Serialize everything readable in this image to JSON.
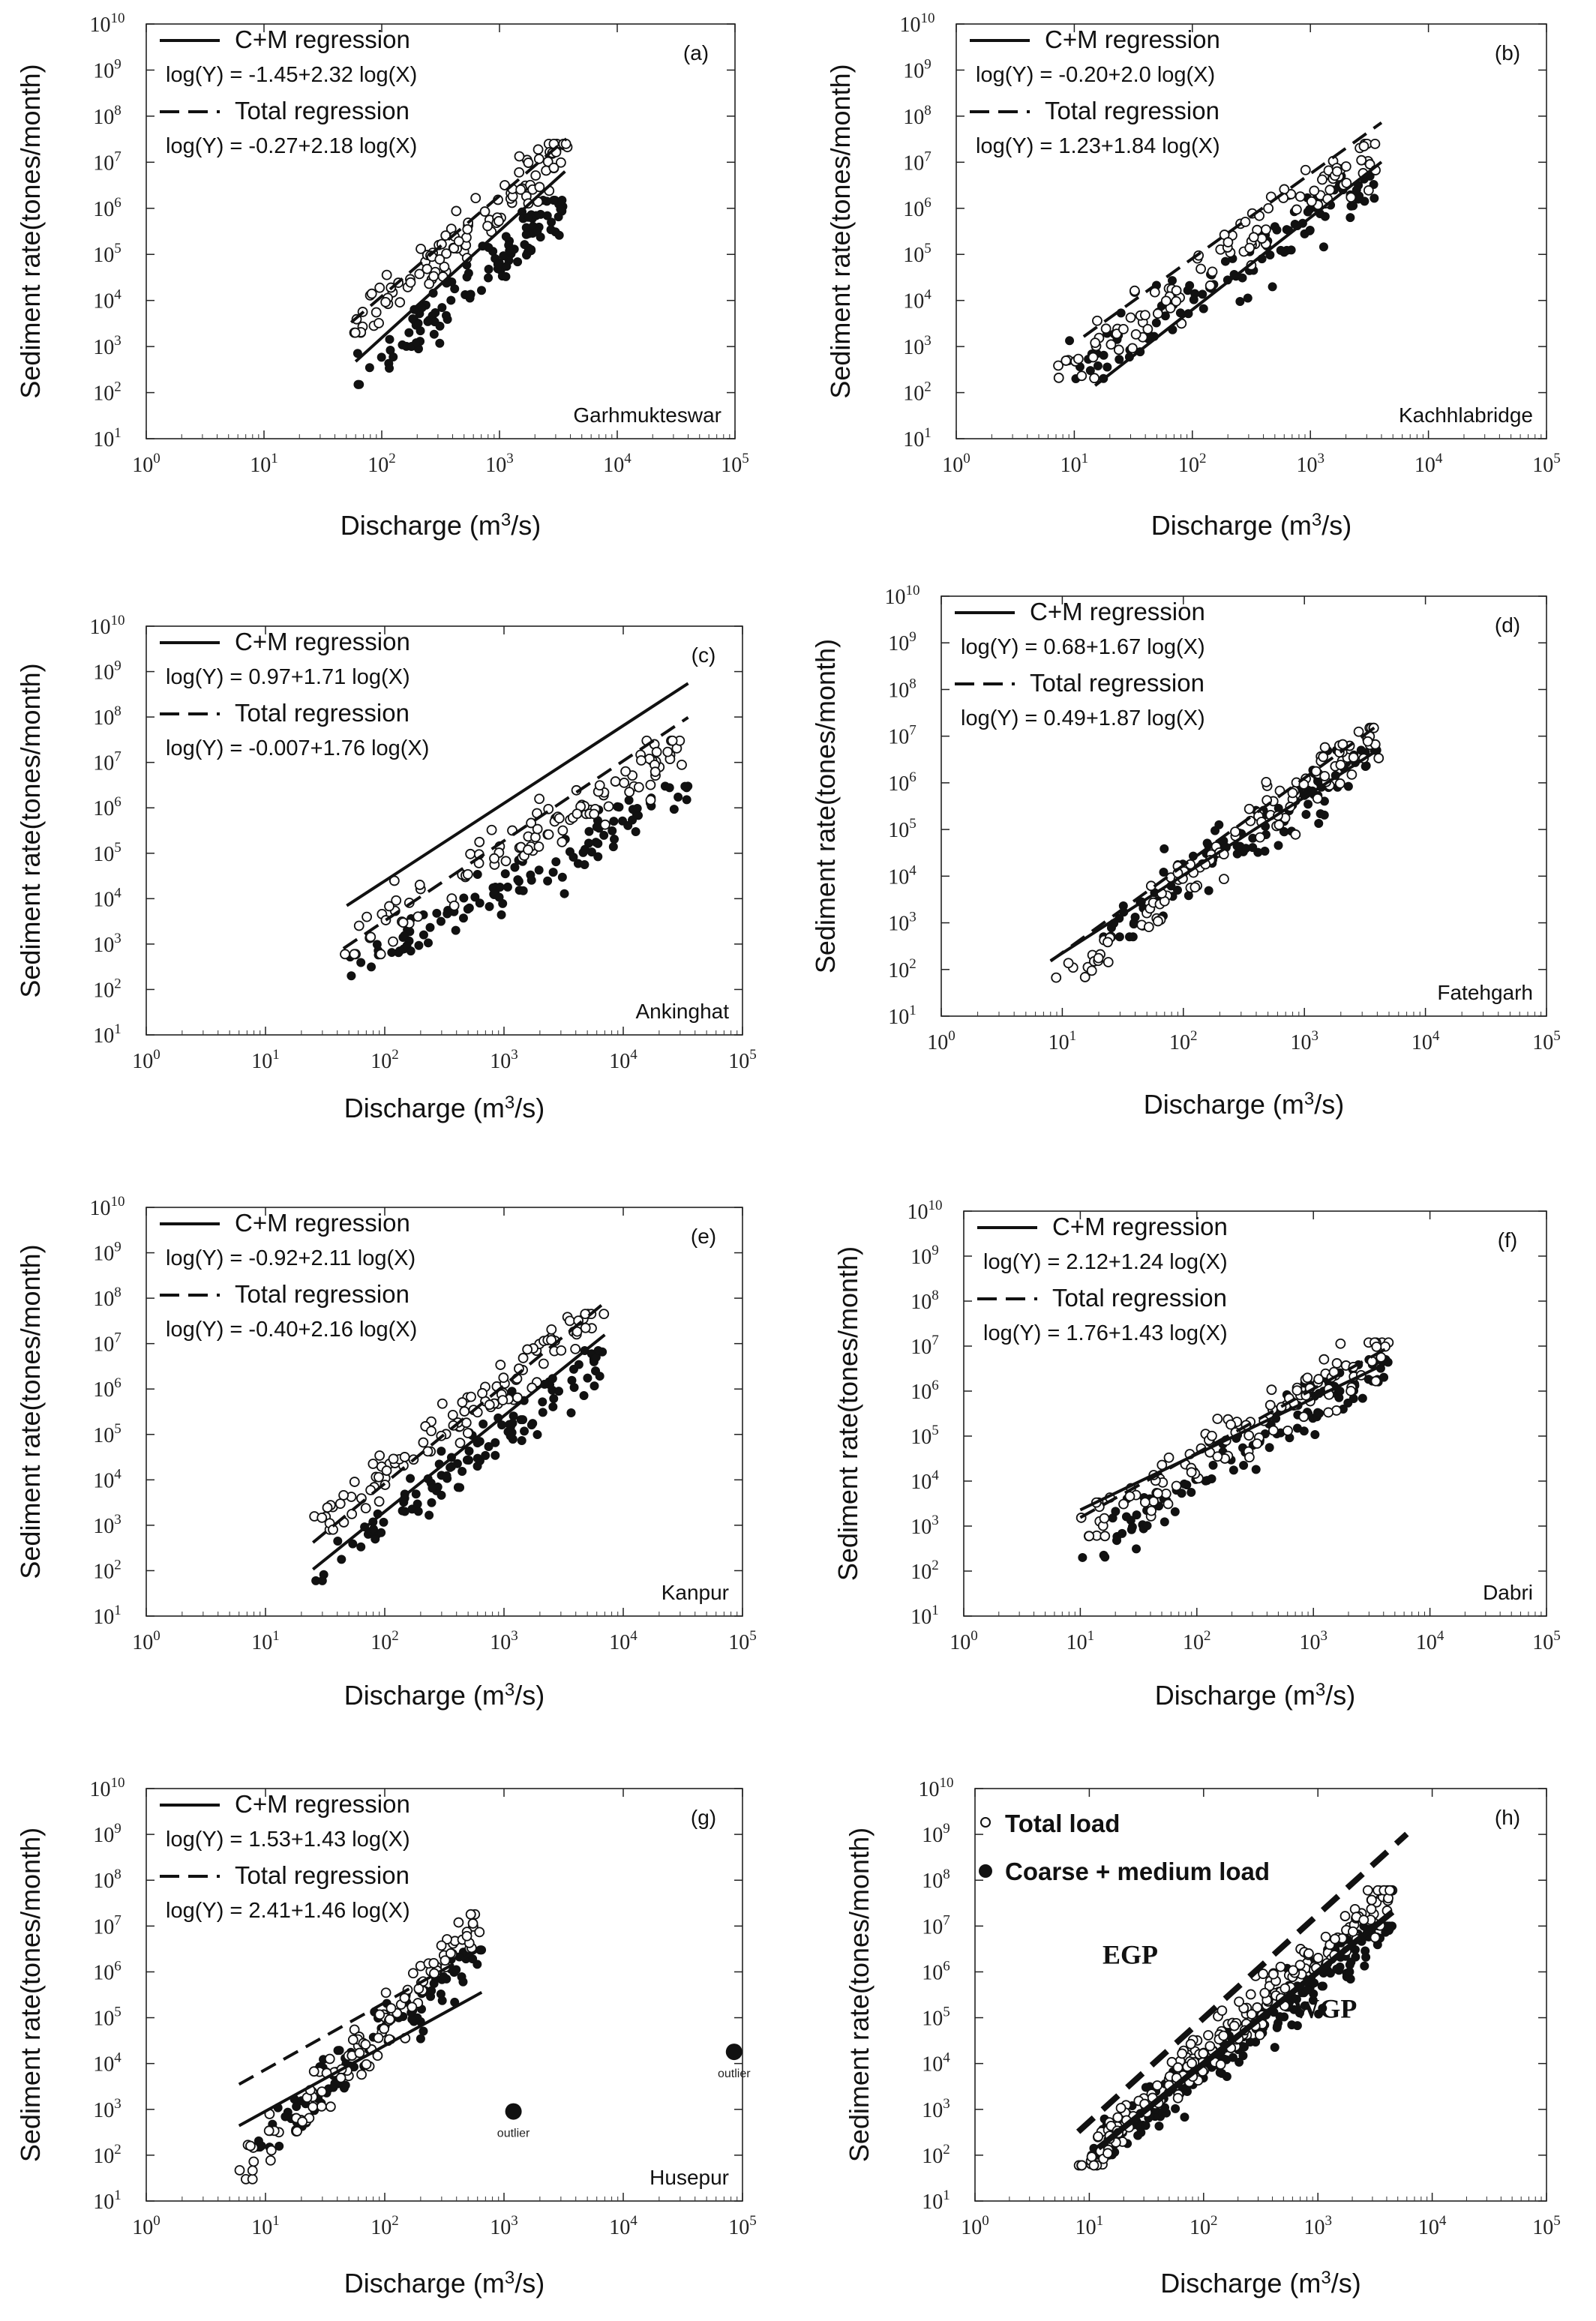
{
  "figure": {
    "xlabel_prefix": "Discharge (m",
    "xlabel_sup": "3",
    "xlabel_suffix": "/s)",
    "ylabel": "Sediment  rate(tones/month)",
    "legend_cm_label": "C+M regression",
    "legend_total_label": "Total regression",
    "outlier_label": "outlier"
  },
  "chart_data": [
    {
      "type": "scatter",
      "panel": "(a)",
      "station": "Garhmukteswar",
      "x_scale": "log",
      "y_scale": "log",
      "xlim": [
        1,
        100000
      ],
      "ylim": [
        10,
        10000000000
      ],
      "series": [
        {
          "name": "Total load",
          "marker": "open-circle",
          "x_range": [
            55,
            3800
          ],
          "y_range": [
            2000,
            25000000
          ]
        },
        {
          "name": "Coarse + medium load",
          "marker": "filled-circle",
          "x_range": [
            60,
            3500
          ],
          "y_range": [
            150,
            1500000
          ]
        }
      ],
      "regressions": [
        {
          "name": "C+M regression",
          "equation": "log(Y) = -1.45+2.32 log(X)",
          "intercept": -1.45,
          "slope": 2.32,
          "x_range": [
            60,
            3600
          ],
          "style": "solid"
        },
        {
          "name": "Total regression",
          "equation": "log(Y) = -0.27+2.18 log(X)",
          "intercept": -0.27,
          "slope": 2.18,
          "x_range": [
            55,
            3700
          ],
          "style": "dashed"
        }
      ]
    },
    {
      "type": "scatter",
      "panel": "(b)",
      "station": "Kachhlabridge",
      "x_scale": "log",
      "y_scale": "log",
      "xlim": [
        1,
        100000
      ],
      "ylim": [
        10,
        10000000000
      ],
      "series": [
        {
          "name": "Total load",
          "marker": "open-circle",
          "x_range": [
            7,
            4200
          ],
          "y_range": [
            180,
            25000000
          ]
        },
        {
          "name": "Coarse + medium load",
          "marker": "filled-circle",
          "x_range": [
            9,
            4000
          ],
          "y_range": [
            200,
            5000000
          ]
        }
      ],
      "regressions": [
        {
          "name": "C+M regression",
          "equation": "log(Y) = -0.20+2.0 log(X)",
          "intercept": -0.2,
          "slope": 2.0,
          "x_range": [
            15,
            4000
          ],
          "style": "solid"
        },
        {
          "name": "Total regression",
          "equation": "log(Y) = 1.23+1.84 log(X)",
          "intercept": 1.23,
          "slope": 1.84,
          "x_range": [
            12,
            4000
          ],
          "style": "dashed"
        }
      ]
    },
    {
      "type": "scatter",
      "panel": "(c)",
      "station": "Ankinghat",
      "x_scale": "log",
      "y_scale": "log",
      "xlim": [
        1,
        100000
      ],
      "ylim": [
        10,
        10000000000
      ],
      "series": [
        {
          "name": "Total load",
          "marker": "open-circle",
          "x_range": [
            45,
            35000
          ],
          "y_range": [
            600,
            30000000
          ]
        },
        {
          "name": "Coarse + medium load",
          "marker": "filled-circle",
          "x_range": [
            48,
            35000
          ],
          "y_range": [
            200,
            3000000
          ]
        }
      ],
      "regressions": [
        {
          "name": "C+M regression",
          "equation": "log(Y) = 0.97+1.71 log(X)",
          "intercept": 0.97,
          "slope": 1.71,
          "x_range": [
            48,
            35000
          ],
          "style": "solid"
        },
        {
          "name": "Total regression",
          "equation": "log(Y) = -0.007+1.76 log(X)",
          "intercept": -0.007,
          "slope": 1.76,
          "x_range": [
            45,
            35000
          ],
          "style": "dashed"
        }
      ]
    },
    {
      "type": "scatter",
      "panel": "(d)",
      "station": "Fatehgarh",
      "x_scale": "log",
      "y_scale": "log",
      "xlim": [
        1,
        100000
      ],
      "ylim": [
        10,
        10000000000
      ],
      "series": [
        {
          "name": "Total load",
          "marker": "open-circle",
          "x_range": [
            8,
            4200
          ],
          "y_range": [
            40,
            15000000
          ]
        },
        {
          "name": "Coarse + medium load",
          "marker": "filled-circle",
          "x_range": [
            20,
            4000
          ],
          "y_range": [
            500,
            5000000
          ]
        }
      ],
      "regressions": [
        {
          "name": "C+M regression",
          "equation": "log(Y) = 0.68+1.67 log(X)",
          "intercept": 0.68,
          "slope": 1.67,
          "x_range": [
            8,
            4000
          ],
          "style": "solid"
        },
        {
          "name": "Total regression",
          "equation": "log(Y) = 0.49+1.87 log(X)",
          "intercept": 0.49,
          "slope": 1.87,
          "x_range": [
            8,
            4000
          ],
          "style": "dashed"
        }
      ]
    },
    {
      "type": "scatter",
      "panel": "(e)",
      "station": "Kanpur",
      "x_scale": "log",
      "y_scale": "log",
      "xlim": [
        1,
        100000
      ],
      "ylim": [
        10,
        10000000000
      ],
      "series": [
        {
          "name": "Total load",
          "marker": "open-circle",
          "x_range": [
            25,
            7000
          ],
          "y_range": [
            800,
            45000000
          ]
        },
        {
          "name": "Coarse + medium load",
          "marker": "filled-circle",
          "x_range": [
            25,
            7000
          ],
          "y_range": [
            60,
            7000000
          ]
        }
      ],
      "regressions": [
        {
          "name": "C+M regression",
          "equation": "log(Y) = -0.92+2.11 log(X)",
          "intercept": -0.92,
          "slope": 2.11,
          "x_range": [
            25,
            7000
          ],
          "style": "solid"
        },
        {
          "name": "Total regression",
          "equation": "log(Y) = -0.40+2.16 log(X)",
          "intercept": -0.4,
          "slope": 2.16,
          "x_range": [
            25,
            7000
          ],
          "style": "dashed"
        }
      ]
    },
    {
      "type": "scatter",
      "panel": "(f)",
      "station": "Dabri",
      "x_scale": "log",
      "y_scale": "log",
      "xlim": [
        1,
        100000
      ],
      "ylim": [
        10,
        10000000000
      ],
      "series": [
        {
          "name": "Total load",
          "marker": "open-circle",
          "x_range": [
            9,
            4500
          ],
          "y_range": [
            600,
            12000000
          ]
        },
        {
          "name": "Coarse + medium load",
          "marker": "filled-circle",
          "x_range": [
            10,
            4500
          ],
          "y_range": [
            200,
            5000000
          ]
        }
      ],
      "regressions": [
        {
          "name": "C+M regression",
          "equation": "log(Y) = 2.12+1.24 log(X)",
          "intercept": 2.12,
          "slope": 1.24,
          "x_range": [
            10,
            4500
          ],
          "style": "solid"
        },
        {
          "name": "Total regression",
          "equation": "log(Y) = 1.76+1.43 log(X)",
          "intercept": 1.76,
          "slope": 1.43,
          "x_range": [
            10,
            4500
          ],
          "style": "dashed"
        }
      ]
    },
    {
      "type": "scatter",
      "panel": "(g)",
      "station": "Husepur",
      "x_scale": "log",
      "y_scale": "log",
      "xlim": [
        1,
        100000
      ],
      "ylim": [
        10,
        10000000000
      ],
      "series": [
        {
          "name": "Total load",
          "marker": "open-circle",
          "x_range": [
            6,
            650
          ],
          "y_range": [
            30,
            18000000
          ]
        },
        {
          "name": "Coarse + medium load",
          "marker": "filled-circle",
          "x_range": [
            8,
            650
          ],
          "y_range": [
            150,
            3000000
          ]
        }
      ],
      "outliers": [
        {
          "x": 1200,
          "y": 900,
          "label": "outlier"
        },
        {
          "x": 85000,
          "y": 18000,
          "label": "outlier"
        }
      ],
      "regressions": [
        {
          "name": "C+M regression",
          "equation": "log(Y) = 1.53+1.43 log(X)",
          "intercept": 1.53,
          "slope": 1.43,
          "x_range": [
            6,
            650
          ],
          "style": "solid"
        },
        {
          "name": "Total regression",
          "equation": "log(Y) = 2.41+1.46 log(X)",
          "intercept": 2.41,
          "slope": 1.46,
          "x_range": [
            6,
            650
          ],
          "style": "dashed"
        }
      ]
    },
    {
      "type": "scatter",
      "panel": "(h)",
      "x_scale": "log",
      "y_scale": "log",
      "xlim": [
        1,
        100000
      ],
      "ylim": [
        10,
        10000000000
      ],
      "legend": [
        "Total load",
        "Coarse + medium load"
      ],
      "annotations": [
        "EGP",
        "WGP"
      ],
      "series": [
        {
          "name": "Total load",
          "marker": "open-circle",
          "x_range": [
            8,
            4500
          ],
          "y_range": [
            60,
            60000000
          ]
        },
        {
          "name": "Coarse + medium load",
          "marker": "filled-circle",
          "x_range": [
            10,
            4500
          ],
          "y_range": [
            100,
            10000000
          ]
        }
      ],
      "regressions": [
        {
          "name": "EGP",
          "intercept": 0.47,
          "slope": 2.26,
          "x_range": [
            8,
            6000
          ],
          "style": "dashed"
        },
        {
          "name": "WGP",
          "intercept": 0.0,
          "slope": 2.0,
          "x_range": [
            12,
            4500
          ],
          "style": "solid"
        }
      ]
    }
  ]
}
